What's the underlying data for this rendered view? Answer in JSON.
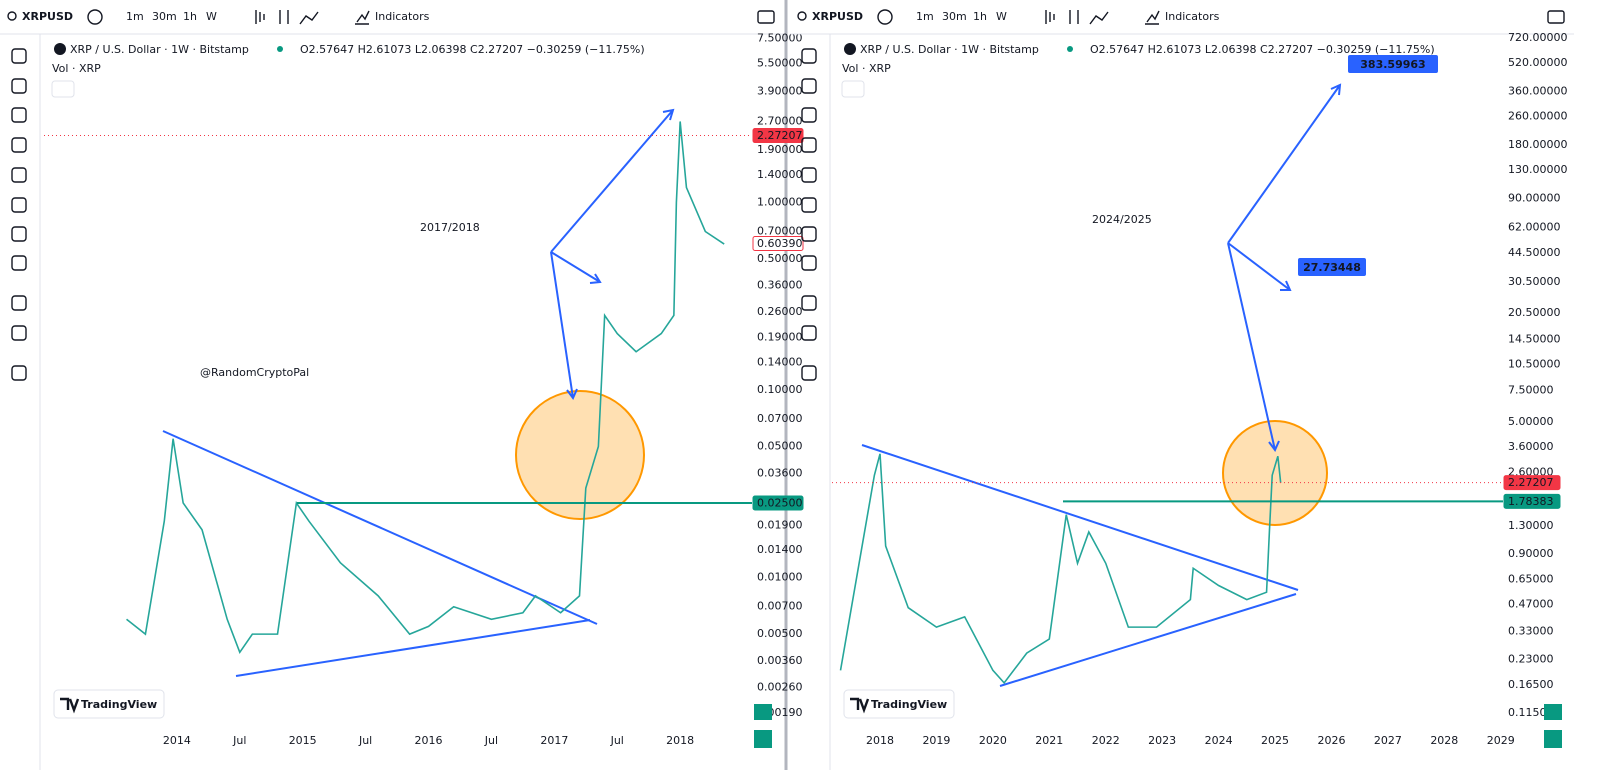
{
  "toolbar": {
    "symbol": "XRPUSD",
    "intervals": [
      "1m",
      "30m",
      "1h",
      "W"
    ],
    "indicators": "Indicators"
  },
  "legend": {
    "title": "XRP / U.S. Dollar · 1W · Bitstamp",
    "ohlc": "O2.57647 H2.61073 L2.06398 C2.27207 −0.30259 (−11.75%)",
    "volume": "Vol · XRP",
    "watermark": "TradingView"
  },
  "chart_data": [
    {
      "type": "line",
      "log_scale": true,
      "grid": false,
      "color": "#26a69a",
      "x": [
        2013.6,
        2013.75,
        2013.9,
        2013.97,
        2014.05,
        2014.2,
        2014.4,
        2014.5,
        2014.6,
        2014.8,
        2014.95,
        2015.05,
        2015.3,
        2015.6,
        2015.85,
        2016.0,
        2016.2,
        2016.5,
        2016.75,
        2016.85,
        2017.05,
        2017.2,
        2017.25,
        2017.35,
        2017.4,
        2017.5,
        2017.65,
        2017.85,
        2017.95,
        2017.97,
        2018.0,
        2018.05,
        2018.2,
        2018.35
      ],
      "values": [
        0.006,
        0.005,
        0.02,
        0.055,
        0.025,
        0.018,
        0.006,
        0.004,
        0.005,
        0.005,
        0.025,
        0.02,
        0.012,
        0.008,
        0.005,
        0.0055,
        0.007,
        0.006,
        0.0065,
        0.008,
        0.0065,
        0.008,
        0.03,
        0.05,
        0.25,
        0.2,
        0.16,
        0.2,
        0.25,
        1.0,
        2.7,
        1.2,
        0.7,
        0.6
      ],
      "xlim": [
        2012.944,
        2018.571
      ],
      "ylim": [
        0.00158,
        8.3
      ],
      "xticks": [
        2014,
        {
          "value": 2014.5,
          "label": "Jul"
        },
        2015,
        {
          "value": 2015.5,
          "label": "Jul"
        },
        2016,
        {
          "value": 2016.5,
          "label": "Jul"
        },
        2017,
        {
          "value": 2017.5,
          "label": "Jul"
        },
        2018
      ],
      "yticks": [
        {
          "value": 7.5,
          "label": "7.50000"
        },
        {
          "value": 5.5,
          "label": "5.50000"
        },
        {
          "value": 3.9,
          "label": "3.90000"
        },
        {
          "value": 2.7,
          "label": "2.70000"
        },
        {
          "value": 1.9,
          "label": "1.90000"
        },
        {
          "value": 1.4,
          "label": "1.40000"
        },
        {
          "value": 1,
          "label": "1.00000"
        },
        {
          "value": 0.7,
          "label": "0.70000"
        },
        {
          "value": 0.5,
          "label": "0.50000"
        },
        {
          "value": 0.36,
          "label": "0.36000"
        },
        {
          "value": 0.26,
          "label": "0.26000"
        },
        {
          "value": 0.19,
          "label": "0.19000"
        },
        {
          "value": 0.14,
          "label": "0.14000"
        },
        {
          "value": 0.1,
          "label": "0.10000"
        },
        {
          "value": 0.07,
          "label": "0.07000"
        },
        {
          "value": 0.05,
          "label": "0.05000"
        },
        {
          "value": 0.036,
          "label": "0.03600"
        },
        {
          "value": 0.019,
          "label": "0.01900"
        },
        {
          "value": 0.014,
          "label": "0.01400"
        },
        {
          "value": 0.01,
          "label": "0.01000"
        },
        {
          "value": 0.007,
          "label": "0.00700"
        },
        {
          "value": 0.005,
          "label": "0.00500"
        },
        {
          "value": 0.0036,
          "label": "0.00360"
        },
        {
          "value": 0.0026,
          "label": "0.00260"
        },
        {
          "value": 0.0019,
          "label": "0.00190"
        }
      ],
      "levels": [
        {
          "value": 0.025,
          "label": "0.02500",
          "color": "#089981",
          "kind": "solid"
        },
        {
          "value": 2.27207,
          "label": "2.27207",
          "color": "#f23645",
          "kind": "dotted"
        },
        {
          "value": 0.6039,
          "label": "0.60390",
          "color": "#f23645",
          "kind": "none"
        }
      ],
      "annotations": [
        "2017/2018",
        "@RandomCryptoPal"
      ]
    },
    {
      "type": "line",
      "log_scale": true,
      "grid": false,
      "color": "#26a69a",
      "x": [
        2017.3,
        2017.9,
        2018.0,
        2018.1,
        2018.5,
        2019.0,
        2019.5,
        2020.0,
        2020.2,
        2020.6,
        2021.0,
        2021.3,
        2021.5,
        2021.7,
        2022.0,
        2022.4,
        2022.9,
        2023.5,
        2023.55,
        2024.0,
        2024.5,
        2024.85,
        2024.9,
        2024.95,
        2025.05,
        2025.1
      ],
      "values": [
        0.2,
        2.5,
        3.3,
        1.0,
        0.45,
        0.35,
        0.4,
        0.2,
        0.17,
        0.25,
        0.3,
        1.5,
        0.8,
        1.2,
        0.8,
        0.35,
        0.35,
        0.5,
        0.75,
        0.6,
        0.5,
        0.55,
        1.2,
        2.5,
        3.2,
        2.27
      ],
      "xlim": [
        2017.149,
        2029.04
      ],
      "ylim": [
        0.0948,
        798
      ],
      "xticks": [
        2018,
        2019,
        2020,
        2021,
        2022,
        2023,
        2024,
        2025,
        2026,
        2027,
        2028,
        2029
      ],
      "yticks": [
        {
          "value": 720,
          "label": "720.00000"
        },
        {
          "value": 520,
          "label": "520.00000"
        },
        {
          "value": 360,
          "label": "360.00000"
        },
        {
          "value": 260,
          "label": "260.00000"
        },
        {
          "value": 180,
          "label": "180.00000"
        },
        {
          "value": 130,
          "label": "130.00000"
        },
        {
          "value": 90,
          "label": "90.00000"
        },
        {
          "value": 62,
          "label": "62.00000"
        },
        {
          "value": 44.5,
          "label": "44.50000"
        },
        {
          "value": 30.5,
          "label": "30.50000"
        },
        {
          "value": 20.5,
          "label": "20.50000"
        },
        {
          "value": 14.5,
          "label": "14.50000"
        },
        {
          "value": 10.5,
          "label": "10.50000"
        },
        {
          "value": 7.5,
          "label": "7.50000"
        },
        {
          "value": 5,
          "label": "5.00000"
        },
        {
          "value": 3.6,
          "label": "3.60000"
        },
        {
          "value": 2.6,
          "label": "2.60000"
        },
        {
          "value": 1.3,
          "label": "1.30000"
        },
        {
          "value": 0.9,
          "label": "0.90000"
        },
        {
          "value": 0.65,
          "label": "0.65000"
        },
        {
          "value": 0.47,
          "label": "0.47000"
        },
        {
          "value": 0.33,
          "label": "0.33000"
        },
        {
          "value": 0.23,
          "label": "0.23000"
        },
        {
          "value": 0.165,
          "label": "0.16500"
        },
        {
          "value": 0.115,
          "label": "0.11500"
        }
      ],
      "levels": [
        {
          "value": 1.78383,
          "label": "1.78383",
          "color": "#089981",
          "kind": "solid"
        },
        {
          "value": 2.27207,
          "label": "2.27207",
          "color": "#f23645",
          "kind": "dotted"
        }
      ],
      "annotations": [
        "2024/2025"
      ],
      "targets": [
        383.59963,
        27.73448
      ]
    }
  ]
}
